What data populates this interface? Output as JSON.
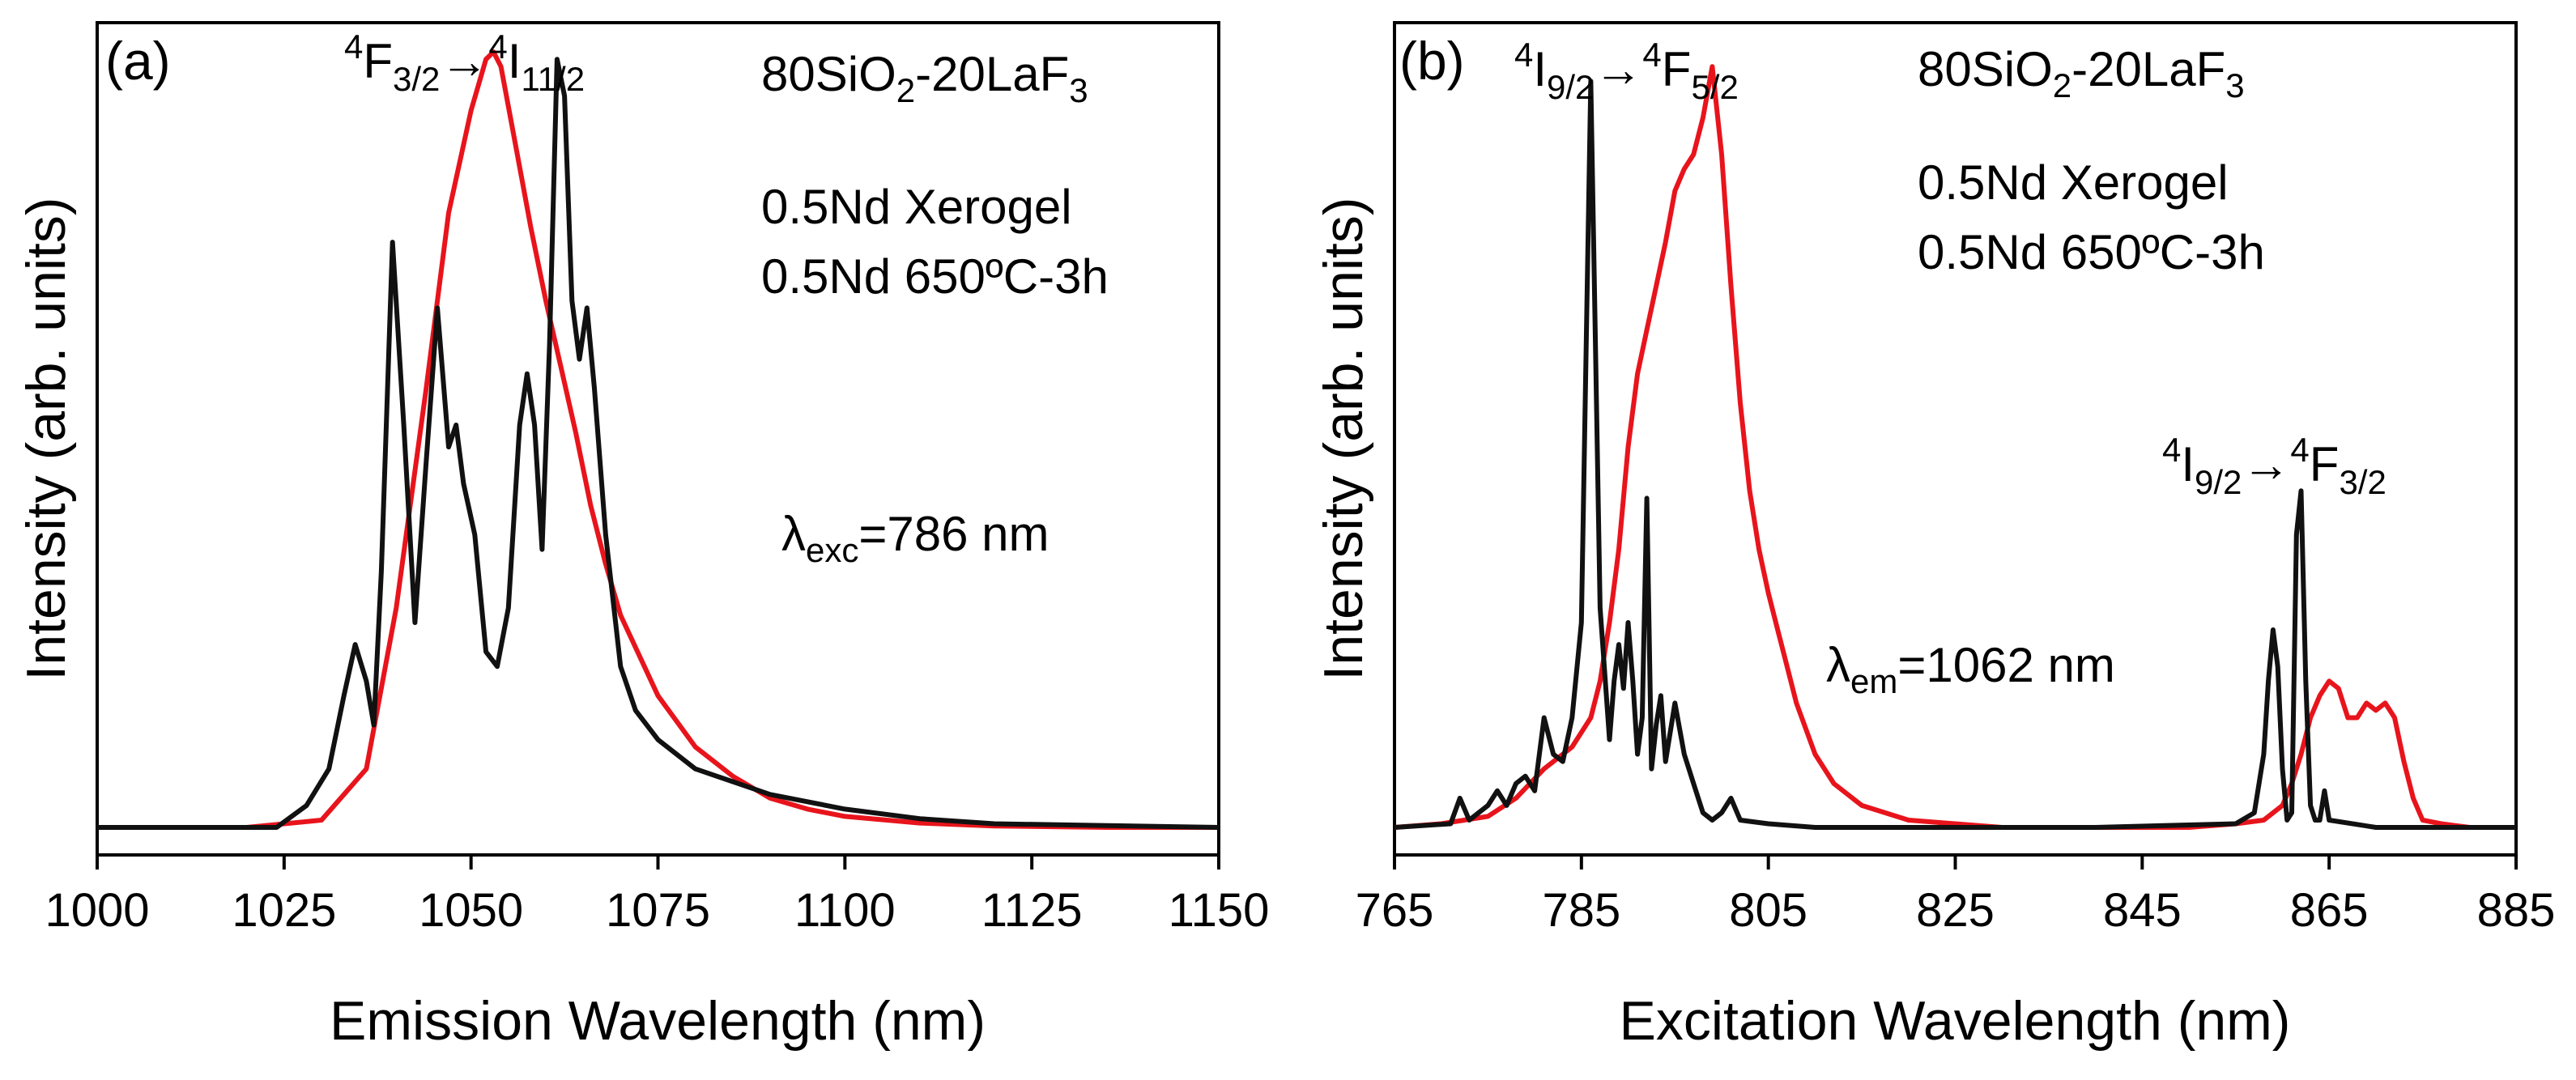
{
  "chart_data": [
    {
      "panel_label": "(a)",
      "type": "line",
      "xlabel": "Emission Wavelength (nm)",
      "ylabel": "Intensity (arb. units)",
      "xlim": [
        1000,
        1150
      ],
      "ylim": [
        0,
        1.1
      ],
      "xticks": [
        1000,
        1025,
        1050,
        1075,
        1100,
        1125,
        1150
      ],
      "composition": {
        "base": "80SiO",
        "s1": "2",
        "mid": "-20LaF",
        "s2": "3"
      },
      "transition": {
        "sup1": "4",
        "a": "F",
        "sub1": "3/2",
        "arrow": "→",
        "sup2": "4",
        "b": "I",
        "sub2": "11/2"
      },
      "excitation": {
        "symbol": "λ",
        "sub": "exc",
        "value": "=786 nm"
      },
      "series": [
        {
          "name": "0.5Nd Xerogel",
          "color": "#e8141c",
          "x": [
            1000,
            1020,
            1030,
            1036,
            1040,
            1044,
            1047,
            1050,
            1052,
            1053,
            1054,
            1056,
            1058,
            1060,
            1062,
            1064,
            1066,
            1068,
            1070,
            1075,
            1080,
            1085,
            1090,
            1095,
            1100,
            1110,
            1120,
            1135,
            1150
          ],
          "y": [
            0.0,
            0.0,
            0.01,
            0.08,
            0.3,
            0.6,
            0.84,
            0.98,
            1.05,
            1.06,
            1.04,
            0.93,
            0.82,
            0.72,
            0.63,
            0.54,
            0.44,
            0.36,
            0.29,
            0.18,
            0.11,
            0.07,
            0.04,
            0.025,
            0.015,
            0.006,
            0.002,
            0.0,
            0.0
          ]
        },
        {
          "name": "0.5Nd 650ºC-3h",
          "color": "#111111",
          "x": [
            1000,
            1024,
            1028,
            1031,
            1033,
            1034.5,
            1036,
            1037,
            1038,
            1039.5,
            1041,
            1042.5,
            1044,
            1045.5,
            1047,
            1048,
            1049,
            1050.5,
            1052,
            1053.5,
            1055,
            1056.5,
            1057.5,
            1058.5,
            1059.5,
            1060.5,
            1061.5,
            1062.5,
            1063.5,
            1064.5,
            1065.5,
            1066.5,
            1068,
            1070,
            1072,
            1075,
            1080,
            1090,
            1100,
            1110,
            1120,
            1150
          ],
          "y": [
            0.0,
            0.0,
            0.03,
            0.08,
            0.18,
            0.25,
            0.2,
            0.14,
            0.35,
            0.8,
            0.55,
            0.28,
            0.5,
            0.71,
            0.52,
            0.55,
            0.47,
            0.4,
            0.24,
            0.22,
            0.3,
            0.55,
            0.62,
            0.55,
            0.38,
            0.66,
            1.05,
            1.0,
            0.72,
            0.64,
            0.71,
            0.6,
            0.4,
            0.22,
            0.16,
            0.12,
            0.08,
            0.045,
            0.025,
            0.012,
            0.005,
            0.0
          ]
        }
      ]
    },
    {
      "panel_label": "(b)",
      "type": "line",
      "xlabel": "Excitation Wavelength (nm)",
      "ylabel": "Intensity (arb. units)",
      "xlim": [
        765,
        885
      ],
      "ylim": [
        0,
        1.1
      ],
      "xticks": [
        765,
        785,
        805,
        825,
        845,
        865,
        885
      ],
      "composition": {
        "base": "80SiO",
        "s1": "2",
        "mid": "-20LaF",
        "s2": "3"
      },
      "transition": {
        "sup1": "4",
        "a": "I",
        "sub1": "9/2",
        "arrow": "→",
        "sup2": "4",
        "b": "F",
        "sub2": "5/2"
      },
      "transition2": {
        "sup1": "4",
        "a": "I",
        "sub1": "9/2",
        "arrow": "→",
        "sup2": "4",
        "b": "F",
        "sub2": "3/2"
      },
      "emission": {
        "symbol": "λ",
        "sub": "em",
        "value": "=1062 nm"
      },
      "series": [
        {
          "name": "0.5Nd Xerogel",
          "color": "#e8141c",
          "x": [
            765,
            770,
            775,
            778,
            781,
            784,
            786,
            787,
            788,
            789,
            790,
            791,
            792,
            793,
            794,
            795,
            796,
            797,
            798,
            799,
            800,
            801,
            802,
            803,
            804,
            805,
            806,
            807,
            808,
            810,
            812,
            815,
            820,
            830,
            840,
            850,
            855,
            858,
            860,
            861,
            862,
            863,
            864,
            865,
            866,
            867,
            868,
            869,
            870,
            871,
            872,
            873,
            874,
            875,
            877,
            880,
            885
          ],
          "y": [
            0.0,
            0.005,
            0.015,
            0.04,
            0.08,
            0.11,
            0.15,
            0.2,
            0.28,
            0.38,
            0.52,
            0.62,
            0.68,
            0.74,
            0.8,
            0.87,
            0.9,
            0.92,
            0.97,
            1.04,
            0.92,
            0.74,
            0.58,
            0.46,
            0.38,
            0.32,
            0.27,
            0.22,
            0.17,
            0.1,
            0.06,
            0.03,
            0.01,
            0.0,
            0.0,
            0.0,
            0.005,
            0.01,
            0.03,
            0.06,
            0.1,
            0.15,
            0.18,
            0.2,
            0.19,
            0.15,
            0.15,
            0.17,
            0.16,
            0.17,
            0.15,
            0.09,
            0.04,
            0.01,
            0.005,
            0.0,
            0.0
          ]
        },
        {
          "name": "0.5Nd 650ºC-3h",
          "color": "#111111",
          "x": [
            765,
            771,
            772,
            773,
            774,
            775,
            776,
            777,
            778,
            779,
            780,
            781,
            782,
            783,
            784,
            785,
            786,
            787,
            788,
            788.5,
            789,
            789.5,
            790,
            790.5,
            791,
            791.5,
            792,
            792.5,
            793,
            793.5,
            794,
            795,
            796,
            797,
            798,
            799,
            800,
            801,
            802,
            805,
            810,
            820,
            830,
            840,
            855,
            857,
            858,
            858.5,
            859,
            859.5,
            860,
            860.5,
            861,
            861.5,
            862,
            862.5,
            863,
            863.5,
            864,
            864.5,
            865,
            870,
            885
          ],
          "y": [
            0.0,
            0.005,
            0.04,
            0.01,
            0.02,
            0.03,
            0.05,
            0.03,
            0.06,
            0.07,
            0.05,
            0.15,
            0.1,
            0.09,
            0.15,
            0.28,
            1.02,
            0.3,
            0.12,
            0.2,
            0.25,
            0.19,
            0.28,
            0.2,
            0.1,
            0.15,
            0.45,
            0.08,
            0.14,
            0.18,
            0.09,
            0.17,
            0.1,
            0.06,
            0.02,
            0.01,
            0.02,
            0.04,
            0.01,
            0.005,
            0.0,
            0.0,
            0.0,
            0.0,
            0.005,
            0.02,
            0.1,
            0.2,
            0.27,
            0.22,
            0.08,
            0.01,
            0.02,
            0.4,
            0.46,
            0.2,
            0.03,
            0.01,
            0.01,
            0.05,
            0.01,
            0.0,
            0.0
          ]
        }
      ]
    }
  ]
}
